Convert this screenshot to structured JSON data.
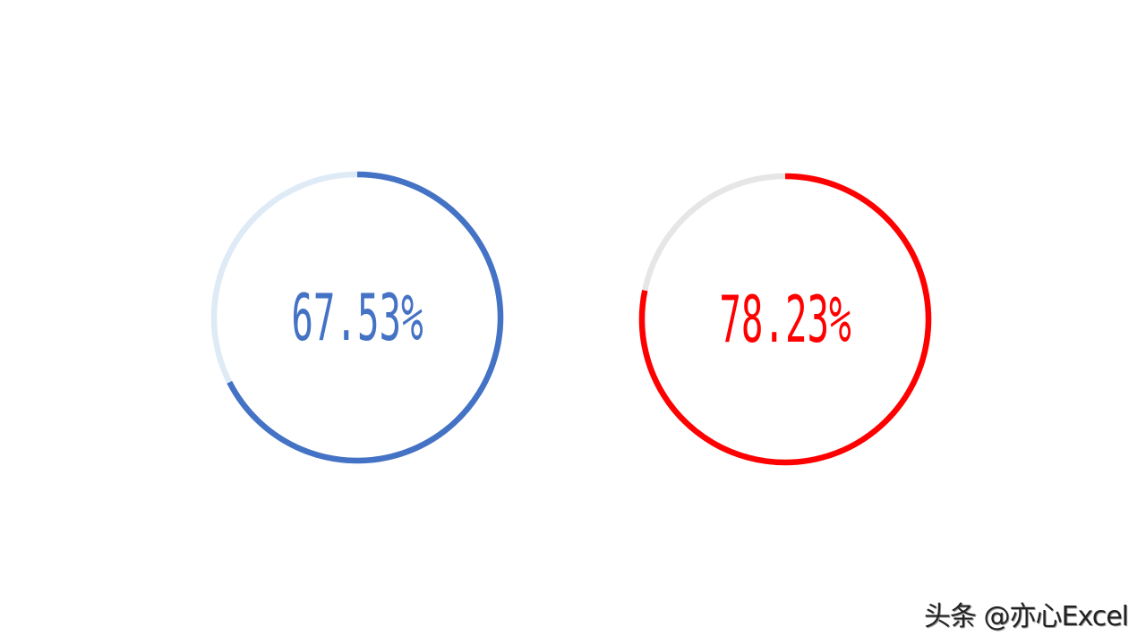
{
  "chart_data": [
    {
      "type": "pie",
      "subtype": "progress-ring",
      "value": 67.53,
      "label": "67.53%",
      "colors": {
        "progress": "#4472C4",
        "track": "#DEEAF6",
        "text": "#4472C4"
      }
    },
    {
      "type": "pie",
      "subtype": "progress-ring",
      "value": 78.23,
      "label": "78.23%",
      "colors": {
        "progress": "#FF0000",
        "track": "#E7E6E6",
        "text": "#FF0000"
      }
    }
  ],
  "watermark": "头条 @亦心Excel"
}
